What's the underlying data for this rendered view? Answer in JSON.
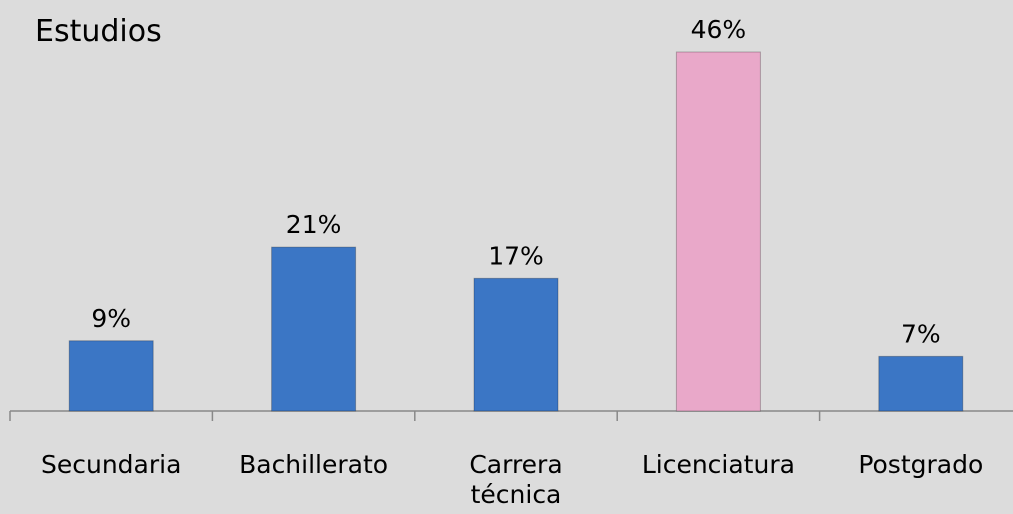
{
  "chart_data": {
    "type": "bar",
    "title": "Estudios",
    "categories": [
      "Secundaria",
      "Bachillerato",
      "Carrera técnica",
      "Licenciatura",
      "Postgrado"
    ],
    "values": [
      9,
      21,
      17,
      46,
      7
    ],
    "value_labels": [
      "9%",
      "21%",
      "17%",
      "46%",
      "7%"
    ],
    "colors": [
      "#3b76c5",
      "#3b76c5",
      "#3b76c5",
      "#e9a8c9",
      "#3b76c5"
    ]
  }
}
